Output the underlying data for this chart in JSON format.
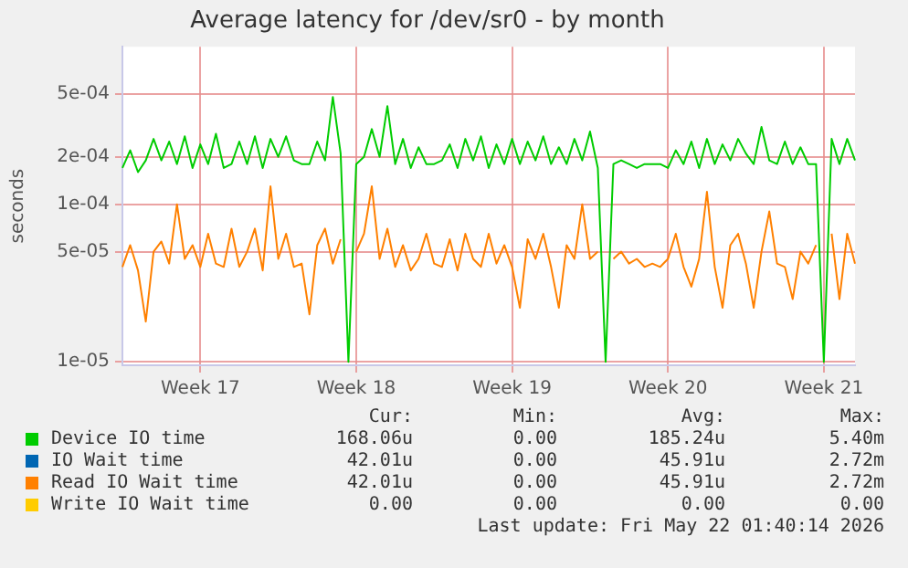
{
  "chart_data": {
    "type": "line",
    "title": "Average latency for /dev/sr0 - by month",
    "ylabel": "seconds",
    "categories": [
      null,
      null,
      null,
      null,
      null,
      null,
      null,
      null,
      null,
      null,
      "Week 17",
      null,
      null,
      null,
      null,
      null,
      null,
      null,
      null,
      null,
      null,
      null,
      null,
      null,
      null,
      null,
      null,
      null,
      null,
      null,
      "Week 18",
      null,
      null,
      null,
      null,
      null,
      null,
      null,
      null,
      null,
      null,
      null,
      null,
      null,
      null,
      null,
      null,
      null,
      null,
      null,
      "Week 19",
      null,
      null,
      null,
      null,
      null,
      null,
      null,
      null,
      null,
      null,
      null,
      null,
      null,
      null,
      null,
      null,
      null,
      null,
      null,
      "Week 20",
      null,
      null,
      null,
      null,
      null,
      null,
      null,
      null,
      null,
      null,
      null,
      null,
      null,
      null,
      null,
      null,
      null,
      null,
      null,
      "Week 21",
      null,
      null,
      null,
      null
    ],
    "series": [
      {
        "name": "Device IO time",
        "color": "#00cc00",
        "values": [
          0.00017,
          0.00022,
          0.00016,
          0.00019,
          0.00026,
          0.00019,
          0.00025,
          0.00018,
          0.00027,
          0.00017,
          0.00024,
          0.00018,
          0.00028,
          0.00017,
          0.00018,
          0.00025,
          0.00018,
          0.00027,
          0.00017,
          0.00026,
          0.0002,
          0.00027,
          0.00019,
          0.00018,
          0.00018,
          0.00025,
          0.00019,
          0.00048,
          0.00021,
          1e-05,
          0.00018,
          0.0002,
          0.0003,
          0.0002,
          0.00042,
          0.00018,
          0.00026,
          0.00017,
          0.00023,
          0.00018,
          0.00018,
          0.00019,
          0.00024,
          0.00017,
          0.00026,
          0.00019,
          0.00027,
          0.00017,
          0.00024,
          0.00018,
          0.00026,
          0.00018,
          0.00025,
          0.00019,
          0.00027,
          0.00018,
          0.00023,
          0.00018,
          0.00026,
          0.00019,
          0.00029,
          0.00017,
          1e-05,
          0.00018,
          0.00019,
          0.00018,
          0.00017,
          0.00018,
          0.00018,
          0.00018,
          0.00017,
          0.00022,
          0.00018,
          0.00025,
          0.00017,
          0.00026,
          0.00018,
          0.00024,
          0.00019,
          0.00026,
          0.00021,
          0.00018,
          0.00031,
          0.00019,
          0.00018,
          0.00025,
          0.00018,
          0.00023,
          0.00018,
          0.00018,
          1e-05,
          0.00026,
          0.00018,
          0.00026,
          0.00019
        ]
      },
      {
        "name": "IO Wait time",
        "color": "#0066b3",
        "values": [
          null,
          null,
          null,
          null,
          null,
          null,
          null,
          null,
          null,
          null,
          null,
          null,
          null,
          null,
          null,
          null,
          null,
          null,
          null,
          null,
          null,
          null,
          null,
          null,
          null,
          null,
          null,
          null,
          null,
          null,
          null,
          null,
          null,
          null,
          null,
          null,
          null,
          null,
          null,
          null,
          null,
          null,
          null,
          null,
          null,
          null,
          null,
          null,
          null,
          null,
          null,
          null,
          null,
          null,
          null,
          null,
          null,
          null,
          null,
          null,
          null,
          null,
          null,
          null,
          null,
          null,
          null,
          null,
          null,
          null,
          null,
          null,
          null,
          null,
          null,
          null,
          null,
          null,
          null,
          null,
          null,
          null,
          null,
          null,
          null,
          null,
          null,
          null,
          null,
          null,
          null,
          null,
          null,
          null,
          null
        ]
      },
      {
        "name": "Read IO Wait time",
        "color": "#ff8000",
        "values": [
          4e-05,
          5.5e-05,
          3.8e-05,
          1.8e-05,
          5e-05,
          5.8e-05,
          4.2e-05,
          0.0001,
          4.5e-05,
          5.5e-05,
          4e-05,
          6.5e-05,
          4.2e-05,
          4e-05,
          7e-05,
          4e-05,
          5e-05,
          7e-05,
          3.8e-05,
          0.00013,
          4.5e-05,
          6.5e-05,
          4e-05,
          4.2e-05,
          2e-05,
          5.5e-05,
          7e-05,
          4.2e-05,
          6e-05,
          null,
          5e-05,
          6.5e-05,
          0.00013,
          4.5e-05,
          7e-05,
          4e-05,
          5.5e-05,
          3.8e-05,
          4.5e-05,
          6.5e-05,
          4.2e-05,
          4e-05,
          6e-05,
          3.8e-05,
          6.5e-05,
          4.5e-05,
          4e-05,
          6.5e-05,
          4.2e-05,
          5.5e-05,
          4e-05,
          2.2e-05,
          6e-05,
          4.5e-05,
          6.5e-05,
          4e-05,
          2.2e-05,
          5.5e-05,
          4.5e-05,
          0.0001,
          4.5e-05,
          5e-05,
          null,
          4.5e-05,
          5e-05,
          4.2e-05,
          4.5e-05,
          4e-05,
          4.2e-05,
          4e-05,
          4.5e-05,
          6.5e-05,
          4e-05,
          3e-05,
          4.5e-05,
          0.00012,
          4e-05,
          2.2e-05,
          5.5e-05,
          6.5e-05,
          4.2e-05,
          2.2e-05,
          5e-05,
          9e-05,
          4.2e-05,
          4e-05,
          2.5e-05,
          5e-05,
          4.2e-05,
          5.5e-05,
          null,
          6.5e-05,
          2.5e-05,
          6.5e-05,
          4.2e-05
        ]
      },
      {
        "name": "Write IO Wait time",
        "color": "#ffcc00",
        "values": [
          null,
          null,
          null,
          null,
          null,
          null,
          null,
          null,
          null,
          null,
          null,
          null,
          null,
          null,
          null,
          null,
          null,
          null,
          null,
          null,
          null,
          null,
          null,
          null,
          null,
          null,
          null,
          null,
          null,
          null,
          null,
          null,
          null,
          null,
          null,
          null,
          null,
          null,
          null,
          null,
          null,
          null,
          null,
          null,
          null,
          null,
          null,
          null,
          null,
          null,
          null,
          null,
          null,
          null,
          null,
          null,
          null,
          null,
          null,
          null,
          null,
          null,
          null,
          null,
          null,
          null,
          null,
          null,
          null,
          null,
          null,
          null,
          null,
          null,
          null,
          null,
          null,
          null,
          null,
          null,
          null,
          null,
          null,
          null,
          null,
          null,
          null,
          null,
          null,
          null,
          null,
          null,
          null,
          null,
          null
        ]
      }
    ],
    "log": "y",
    "ylim": [
      9.5e-06,
      0.001
    ],
    "yticks": [
      {
        "value": 1e-05,
        "label": "1e-05"
      },
      {
        "value": 5e-05,
        "label": "5e-05"
      },
      {
        "value": 0.0001,
        "label": "1e-04"
      },
      {
        "value": 0.0002,
        "label": "2e-04"
      },
      {
        "value": 0.0005,
        "label": "5e-04"
      }
    ],
    "grid": true,
    "legend": "bottom",
    "marker": "none",
    "line_style": "solid",
    "annotations": [
      "Cur:",
      "Min:",
      "Avg:",
      "Max:",
      "168.06u",
      "0.00",
      "185.24u",
      "5.40m",
      "42.01u",
      "0.00",
      "45.91u",
      "2.72m",
      "42.01u",
      "0.00",
      "45.91u",
      "2.72m",
      "0.00",
      "0.00",
      "0.00",
      "0.00",
      "Last update: Fri May 22 01:40:14 2026"
    ]
  }
}
